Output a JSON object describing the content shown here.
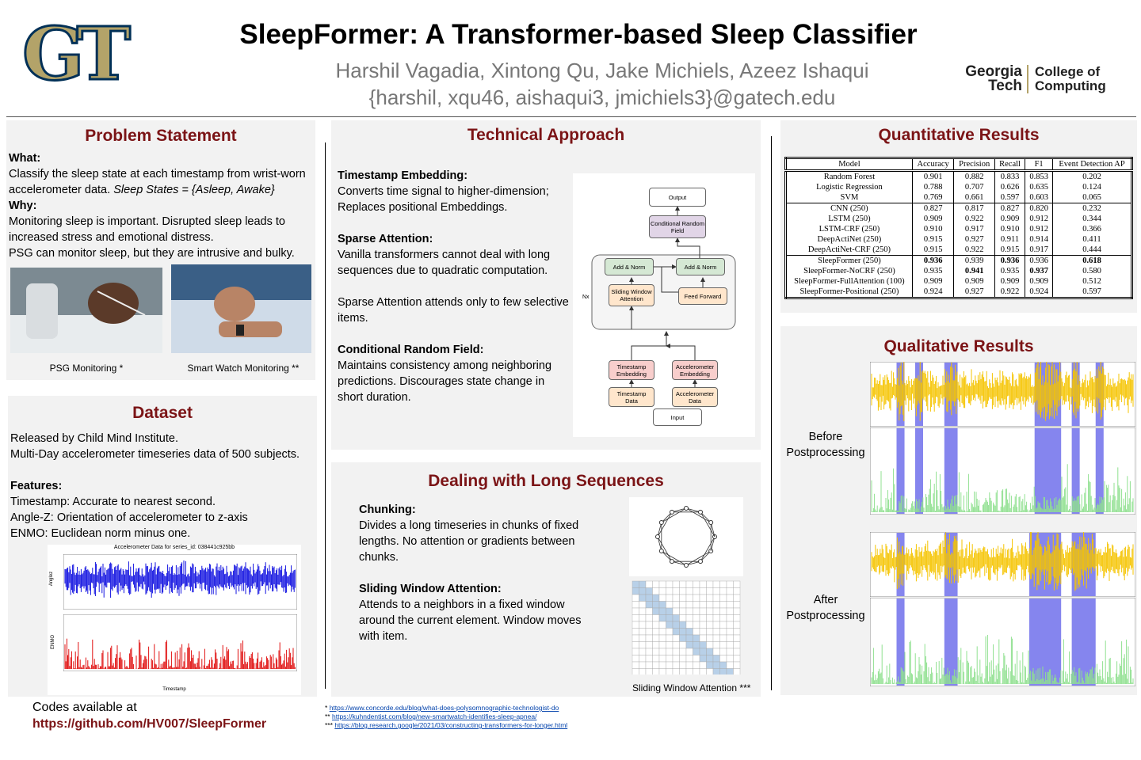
{
  "header": {
    "logo": "GT",
    "title": "SleepFormer: A Transformer-based Sleep Classifier",
    "authors": "Harshil Vagadia, Xintong Qu, Jake Michiels, Azeez Ishaqui",
    "emails": "{harshil, xqu46, aishaqui3, jmichiels3}@gatech.edu",
    "org_logo": [
      "Georgia",
      "Tech",
      "College of",
      "Computing"
    ]
  },
  "problem": {
    "title": "Problem Statement",
    "what_label": "What:",
    "what_text": "Classify the sleep state at each timestamp from wrist-worn accelerometer data.",
    "what_italic": "Sleep States = {Asleep, Awake}",
    "why_label": "Why:",
    "why_lines": [
      "Monitoring sleep is important. Disrupted sleep leads to increased stress and emotional distress.",
      "PSG can monitor sleep, but they are intrusive and bulky."
    ],
    "captions": [
      "PSG Monitoring *",
      "Smart Watch Monitoring **"
    ]
  },
  "dataset": {
    "title": "Dataset",
    "intro": [
      "Released by Child Mind Institute.",
      "Multi-Day accelerometer timeseries data of 500 subjects."
    ],
    "features_label": "Features:",
    "features": [
      "Timestamp: Accurate to nearest second.",
      "Angle-Z: Orientation of accelerometer to z-axis",
      "ENMO: Euclidean norm minus one."
    ],
    "plot_title": "Accelerometer Data for series_id: 038441c925bb",
    "plot_xlabel": "Timestamp",
    "plot_ylabels": [
      "Anglez",
      "ENMO"
    ]
  },
  "technical": {
    "title": "Technical Approach",
    "items": [
      {
        "heading": "Timestamp Embedding:",
        "text": "Converts time signal to higher-dimension; Replaces positional Embeddings."
      },
      {
        "heading": "Sparse Attention:",
        "text": "Vanilla transformers cannot deal with long sequences due to quadratic computation."
      },
      {
        "heading": null,
        "text": "Sparse Attention attends only to few selective items."
      },
      {
        "heading": "Conditional Random Field:",
        "text": "Maintains consistency among neighboring predictions. Discourages state change in short duration."
      }
    ],
    "diagram": {
      "nodes": [
        "Output",
        "Conditional Random Field",
        "Add & Norm",
        "Add & Norm",
        "Sliding Window Attention",
        "Feed Forward",
        "Timestamp Embedding",
        "Accelerometer Embedding",
        "Timestamp Data",
        "Accelerometer Data",
        "Input"
      ],
      "repeat_label": "Nx"
    }
  },
  "long_sequences": {
    "title": "Dealing with Long Sequences",
    "items": [
      {
        "heading": "Chunking:",
        "text": "Divides a long timeseries in chunks of fixed lengths. No attention or gradients between chunks."
      },
      {
        "heading": "Sliding Window Attention:",
        "text": "Attends to a neighbors in a fixed window around the current element. Window moves with item."
      }
    ],
    "caption": "Sliding Window Attention ***"
  },
  "quantitative": {
    "title": "Quantitative Results",
    "columns": [
      "Model",
      "Accuracy",
      "Precision",
      "Recall",
      "F1",
      "Event Detection AP"
    ],
    "rows": [
      [
        "Random Forest",
        "0.901",
        "0.882",
        "0.833",
        "0.853",
        "0.202"
      ],
      [
        "Logistic Regression",
        "0.788",
        "0.707",
        "0.626",
        "0.635",
        "0.124"
      ],
      [
        "SVM",
        "0.769",
        "0.661",
        "0.597",
        "0.603",
        "0.065"
      ],
      [
        "CNN (250)",
        "0.827",
        "0.817",
        "0.827",
        "0.820",
        "0.232"
      ],
      [
        "LSTM (250)",
        "0.909",
        "0.922",
        "0.909",
        "0.912",
        "0.344"
      ],
      [
        "LSTM-CRF (250)",
        "0.910",
        "0.917",
        "0.910",
        "0.912",
        "0.366"
      ],
      [
        "DeepActiNet (250)",
        "0.915",
        "0.927",
        "0.911",
        "0.914",
        "0.411"
      ],
      [
        "DeepActiNet-CRF (250)",
        "0.915",
        "0.922",
        "0.915",
        "0.917",
        "0.444"
      ],
      [
        "SleepFormer (250)",
        "0.936",
        "0.939",
        "0.936",
        "0.936",
        "0.618"
      ],
      [
        "SleepFormer-NoCRF (250)",
        "0.935",
        "0.941",
        "0.935",
        "0.937",
        "0.580"
      ],
      [
        "SleepFormer-FullAttention (100)",
        "0.909",
        "0.909",
        "0.909",
        "0.909",
        "0.512"
      ],
      [
        "SleepFormer-Positional (250)",
        "0.924",
        "0.927",
        "0.922",
        "0.924",
        "0.597"
      ]
    ],
    "group_sizes": [
      3,
      5,
      4
    ],
    "bold": [
      [
        8,
        1
      ],
      [
        8,
        3
      ],
      [
        8,
        5
      ],
      [
        9,
        2
      ],
      [
        9,
        4
      ]
    ]
  },
  "qualitative": {
    "title": "Qualitative Results",
    "labels": [
      "Before Postprocessing",
      "After Postprocessing"
    ]
  },
  "footer": {
    "codes": "Codes available at",
    "link": "https://github.com/HV007/SleepFormer",
    "refs": [
      {
        "mark": "*",
        "url": "https://www.concorde.edu/blog/what-does-polysomnographic-technologist-do"
      },
      {
        "mark": "**",
        "url": "https://kuhndentist.com/blog/new-smartwatch-identifies-sleep-apnea/"
      },
      {
        "mark": "***",
        "url": "https://blog.research.google/2021/03/constructing-transformers-for-longer.html"
      }
    ]
  }
}
